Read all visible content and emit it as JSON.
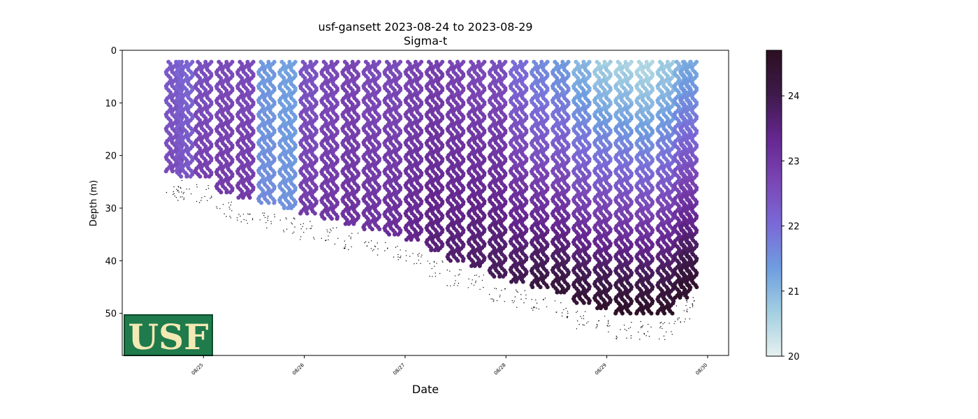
{
  "chart_data": {
    "type": "scatter",
    "title": "usf-gansett 2023-08-24 to 2023-08-29",
    "subtitle": "Sigma-t",
    "xlabel": "Date",
    "ylabel": "Depth (m)",
    "x_ticks": [
      "08/25",
      "08/26",
      "08/27",
      "08/28",
      "08/29",
      "08/30"
    ],
    "x_range": [
      "2023-08-24T04:40",
      "2023-08-30T05:00"
    ],
    "y_ticks": [
      0,
      10,
      20,
      30,
      40,
      50
    ],
    "ylim": [
      58,
      0
    ],
    "y_inverted": true,
    "colorbar": {
      "ticks": [
        20,
        21,
        22,
        23,
        24
      ],
      "range": [
        20,
        24.7
      ],
      "colormap": "dense",
      "colors": [
        "#e6f0f0",
        "#a3cfe1",
        "#6f9ee0",
        "#7a6ad7",
        "#7a46b5",
        "#65268f",
        "#3d1a4a",
        "#2b0f21"
      ]
    },
    "legend": "none",
    "grid": false,
    "profiles": [
      {
        "time": "2023-08-24T17:00",
        "max_depth": 23,
        "sigma_top": 22.3,
        "sigma_bottom": 22.6
      },
      {
        "time": "2023-08-24T19:30",
        "max_depth": 24,
        "sigma_top": 22.1,
        "sigma_bottom": 22.4
      },
      {
        "time": "2023-08-25T00:00",
        "max_depth": 24,
        "sigma_top": 22.5,
        "sigma_bottom": 22.8
      },
      {
        "time": "2023-08-25T05:00",
        "max_depth": 27,
        "sigma_top": 22.6,
        "sigma_bottom": 22.9
      },
      {
        "time": "2023-08-25T10:00",
        "max_depth": 28,
        "sigma_top": 22.6,
        "sigma_bottom": 22.9
      },
      {
        "time": "2023-08-25T15:00",
        "max_depth": 29,
        "sigma_top": 21.4,
        "sigma_bottom": 21.6
      },
      {
        "time": "2023-08-25T20:00",
        "max_depth": 30,
        "sigma_top": 21.3,
        "sigma_bottom": 21.5
      },
      {
        "time": "2023-08-26T01:00",
        "max_depth": 31,
        "sigma_top": 22.4,
        "sigma_bottom": 22.9
      },
      {
        "time": "2023-08-26T06:00",
        "max_depth": 32,
        "sigma_top": 22.6,
        "sigma_bottom": 23.0
      },
      {
        "time": "2023-08-26T11:00",
        "max_depth": 33,
        "sigma_top": 22.7,
        "sigma_bottom": 23.1
      },
      {
        "time": "2023-08-26T16:00",
        "max_depth": 34,
        "sigma_top": 22.6,
        "sigma_bottom": 23.1
      },
      {
        "time": "2023-08-26T21:00",
        "max_depth": 35,
        "sigma_top": 22.6,
        "sigma_bottom": 23.2
      },
      {
        "time": "2023-08-27T02:00",
        "max_depth": 36,
        "sigma_top": 22.7,
        "sigma_bottom": 23.4
      },
      {
        "time": "2023-08-27T07:00",
        "max_depth": 38,
        "sigma_top": 22.8,
        "sigma_bottom": 23.6
      },
      {
        "time": "2023-08-27T12:00",
        "max_depth": 40,
        "sigma_top": 22.7,
        "sigma_bottom": 23.7
      },
      {
        "time": "2023-08-27T17:00",
        "max_depth": 41,
        "sigma_top": 22.6,
        "sigma_bottom": 23.8
      },
      {
        "time": "2023-08-27T22:00",
        "max_depth": 43,
        "sigma_top": 22.5,
        "sigma_bottom": 23.9
      },
      {
        "time": "2023-08-28T03:00",
        "max_depth": 44,
        "sigma_top": 22.0,
        "sigma_bottom": 24.0
      },
      {
        "time": "2023-08-28T08:00",
        "max_depth": 45,
        "sigma_top": 21.6,
        "sigma_bottom": 24.2
      },
      {
        "time": "2023-08-28T13:00",
        "max_depth": 46,
        "sigma_top": 21.4,
        "sigma_bottom": 24.3
      },
      {
        "time": "2023-08-28T18:00",
        "max_depth": 48,
        "sigma_top": 21.0,
        "sigma_bottom": 24.4
      },
      {
        "time": "2023-08-28T23:00",
        "max_depth": 49,
        "sigma_top": 20.7,
        "sigma_bottom": 24.5
      },
      {
        "time": "2023-08-29T04:00",
        "max_depth": 50,
        "sigma_top": 20.6,
        "sigma_bottom": 24.6
      },
      {
        "time": "2023-08-29T09:00",
        "max_depth": 50,
        "sigma_top": 20.5,
        "sigma_bottom": 24.6
      },
      {
        "time": "2023-08-29T14:00",
        "max_depth": 50,
        "sigma_top": 20.7,
        "sigma_bottom": 24.6
      },
      {
        "time": "2023-08-29T18:00",
        "max_depth": 47,
        "sigma_top": 21.0,
        "sigma_bottom": 24.5
      },
      {
        "time": "2023-08-29T19:30",
        "max_depth": 45,
        "sigma_top": 21.2,
        "sigma_bottom": 24.5
      }
    ]
  },
  "logo": {
    "text": "USF",
    "background": "#1f7a4c",
    "text_color": "#f3e9b4"
  }
}
